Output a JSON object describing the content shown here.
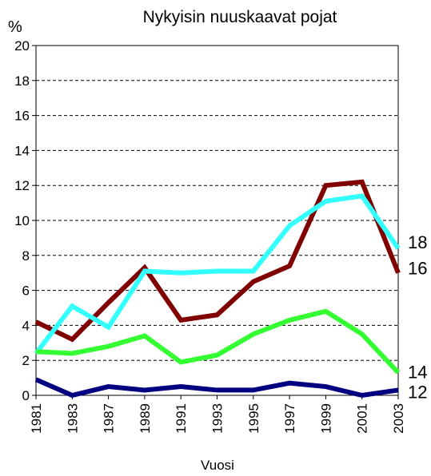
{
  "chart_data": {
    "type": "line",
    "title": "Nykyisin nuuskaavat pojat",
    "y_label": "%",
    "x_label": "Vuosi",
    "categories": [
      "1981",
      "1983",
      "1987",
      "1989",
      "1991",
      "1993",
      "1995",
      "1997",
      "1999",
      "2001",
      "2003"
    ],
    "series": [
      {
        "name": "16",
        "color": "#800000",
        "values": [
          4.2,
          3.2,
          5.3,
          7.3,
          4.3,
          4.6,
          6.5,
          7.4,
          12.0,
          12.2,
          7.0
        ]
      },
      {
        "name": "18",
        "color": "#33ffff",
        "values": [
          2.4,
          5.1,
          3.9,
          7.1,
          7.0,
          7.1,
          7.1,
          9.7,
          11.1,
          11.4,
          8.4
        ]
      },
      {
        "name": "14",
        "color": "#33ff33",
        "values": [
          2.5,
          2.4,
          2.8,
          3.4,
          1.9,
          2.3,
          3.5,
          4.3,
          4.8,
          3.5,
          1.3
        ]
      },
      {
        "name": "12",
        "color": "#000080",
        "values": [
          0.9,
          0.0,
          0.5,
          0.3,
          0.5,
          0.3,
          0.3,
          0.7,
          0.5,
          0.0,
          0.3
        ]
      }
    ],
    "ylim": [
      0,
      20
    ],
    "yticks": [
      0,
      2,
      4,
      6,
      8,
      10,
      12,
      14,
      16,
      18,
      20
    ],
    "grid": true
  }
}
